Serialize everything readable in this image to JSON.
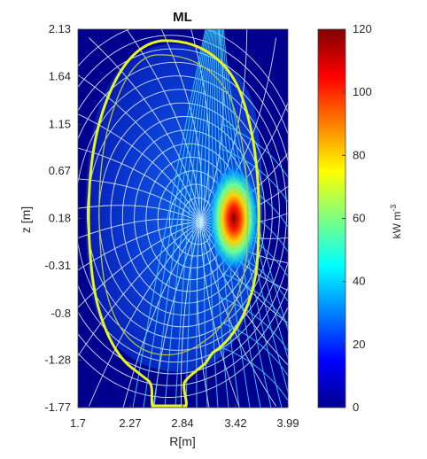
{
  "chart_data": {
    "type": "heatmap",
    "title": "ML",
    "xlabel": "R[m]",
    "ylabel": "z [m]",
    "xlim": [
      1.7,
      3.99
    ],
    "ylim": [
      -1.77,
      2.13
    ],
    "x_ticks": [
      "1.7",
      "2.27",
      "2.84",
      "3.42",
      "3.99"
    ],
    "y_ticks": [
      "2.13",
      "1.64",
      "1.15",
      "0.67",
      "0.18",
      "-0.31",
      "-0.8",
      "-1.28",
      "-1.77"
    ],
    "colorbar": {
      "label": "kW m",
      "label_exponent": "-3",
      "range": [
        0,
        120
      ],
      "ticks": [
        "0",
        "20",
        "40",
        "60",
        "80",
        "100",
        "120"
      ],
      "colormap": "jet"
    },
    "hotspot": {
      "R": 3.42,
      "z": 0.18,
      "peak": 120
    },
    "colors": {
      "background": "#00008f",
      "grid_lines": "#e6f2ff",
      "boundary": "#e6f51e",
      "vessel": "#b6c24a",
      "fan_lines": "#3fd9ff"
    }
  }
}
